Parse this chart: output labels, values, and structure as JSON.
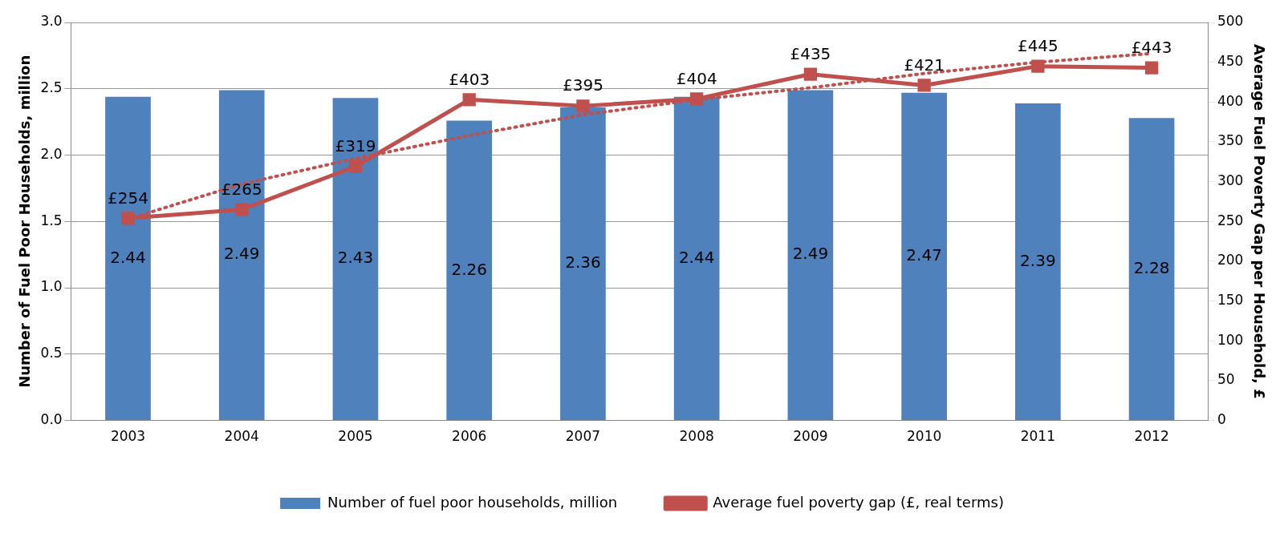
{
  "chart_data": {
    "type": "bar",
    "categories": [
      "2003",
      "2004",
      "2005",
      "2006",
      "2007",
      "2008",
      "2009",
      "2010",
      "2011",
      "2012"
    ],
    "ylabel": "Number of Fuel Poor Households, million",
    "y2label": "Average Fuel Poverty Gap per Household, £",
    "ylim": [
      0,
      3
    ],
    "yticks": [
      {
        "value": 0,
        "label": "0.0"
      },
      {
        "value": 0.5,
        "label": "0.5"
      },
      {
        "value": 1,
        "label": "1.0"
      },
      {
        "value": 1.5,
        "label": "1.5"
      },
      {
        "value": 2,
        "label": "2.0"
      },
      {
        "value": 2.5,
        "label": "2.5"
      },
      {
        "value": 3,
        "label": "3.0"
      }
    ],
    "y2lim": [
      0,
      500
    ],
    "y2ticks": [
      0,
      50,
      100,
      150,
      200,
      250,
      300,
      350,
      400,
      450,
      500
    ],
    "grid": "y",
    "legend": "bottom",
    "series": [
      {
        "name": "Number of fuel poor households, million",
        "color": "#4f81bd",
        "values": [
          2.44,
          2.49,
          2.43,
          2.26,
          2.36,
          2.44,
          2.49,
          2.47,
          2.39,
          2.28
        ],
        "value_labels": [
          "2.44",
          "2.49",
          "2.43",
          "2.26",
          "2.36",
          "2.44",
          "2.49",
          "2.47",
          "2.39",
          "2.28"
        ]
      },
      {
        "type": "line",
        "axis": "y2",
        "name": "Average fuel poverty gap (£, real terms)",
        "color": "#c0504d",
        "marker": "square",
        "line_style": "solid",
        "values": [
          254,
          265,
          319,
          403,
          395,
          404,
          435,
          421,
          445,
          443
        ],
        "value_labels": [
          "£254",
          "£265",
          "£319",
          "£403",
          "£395",
          "£404",
          "£435",
          "£421",
          "£445",
          "£443"
        ]
      },
      {
        "type": "line",
        "axis": "y2",
        "color": "#c0504d",
        "marker": "none",
        "line_style": "dotted",
        "values": [
          253,
          297,
          329,
          358,
          384,
          403,
          418,
          436,
          450,
          461
        ]
      }
    ]
  }
}
